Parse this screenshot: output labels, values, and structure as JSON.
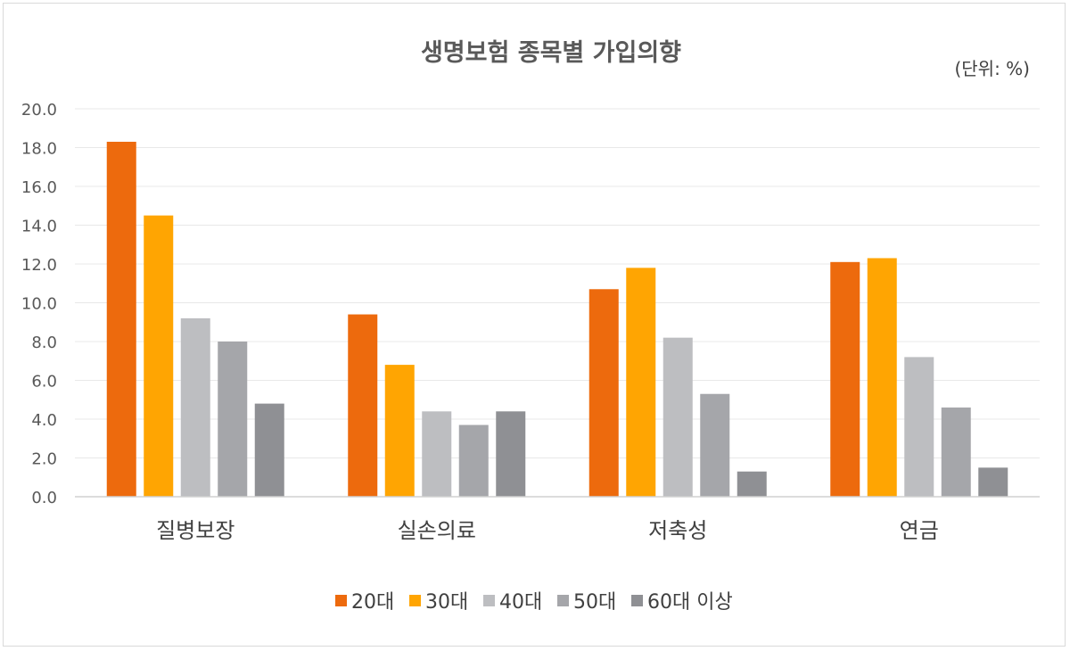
{
  "chart_data": {
    "type": "bar",
    "title": "생명보험 종목별 가입의향",
    "unit_label": "(단위: %)",
    "categories": [
      "질병보장",
      "실손의료",
      "저축성",
      "연금"
    ],
    "series": [
      {
        "name": "20대",
        "color": "#ED6A0D",
        "values": [
          18.3,
          9.4,
          10.7,
          12.1
        ]
      },
      {
        "name": "30대",
        "color": "#FFA502",
        "values": [
          14.5,
          6.8,
          11.8,
          12.3
        ]
      },
      {
        "name": "40대",
        "color": "#BDBEC1",
        "values": [
          9.2,
          4.4,
          8.2,
          7.2
        ]
      },
      {
        "name": "50대",
        "color": "#A5A6AA",
        "values": [
          8.0,
          3.7,
          5.3,
          4.6
        ]
      },
      {
        "name": "60대 이상",
        "color": "#8F9094",
        "values": [
          4.8,
          4.4,
          1.3,
          1.5
        ]
      }
    ],
    "ylim": [
      0,
      20
    ],
    "yticks": [
      "0.0",
      "2.0",
      "4.0",
      "6.0",
      "8.0",
      "10.0",
      "12.0",
      "14.0",
      "16.0",
      "18.0",
      "20.0"
    ],
    "ytick_values": [
      0,
      2,
      4,
      6,
      8,
      10,
      12,
      14,
      16,
      18,
      20
    ],
    "grid": true,
    "legend_position": "bottom"
  }
}
